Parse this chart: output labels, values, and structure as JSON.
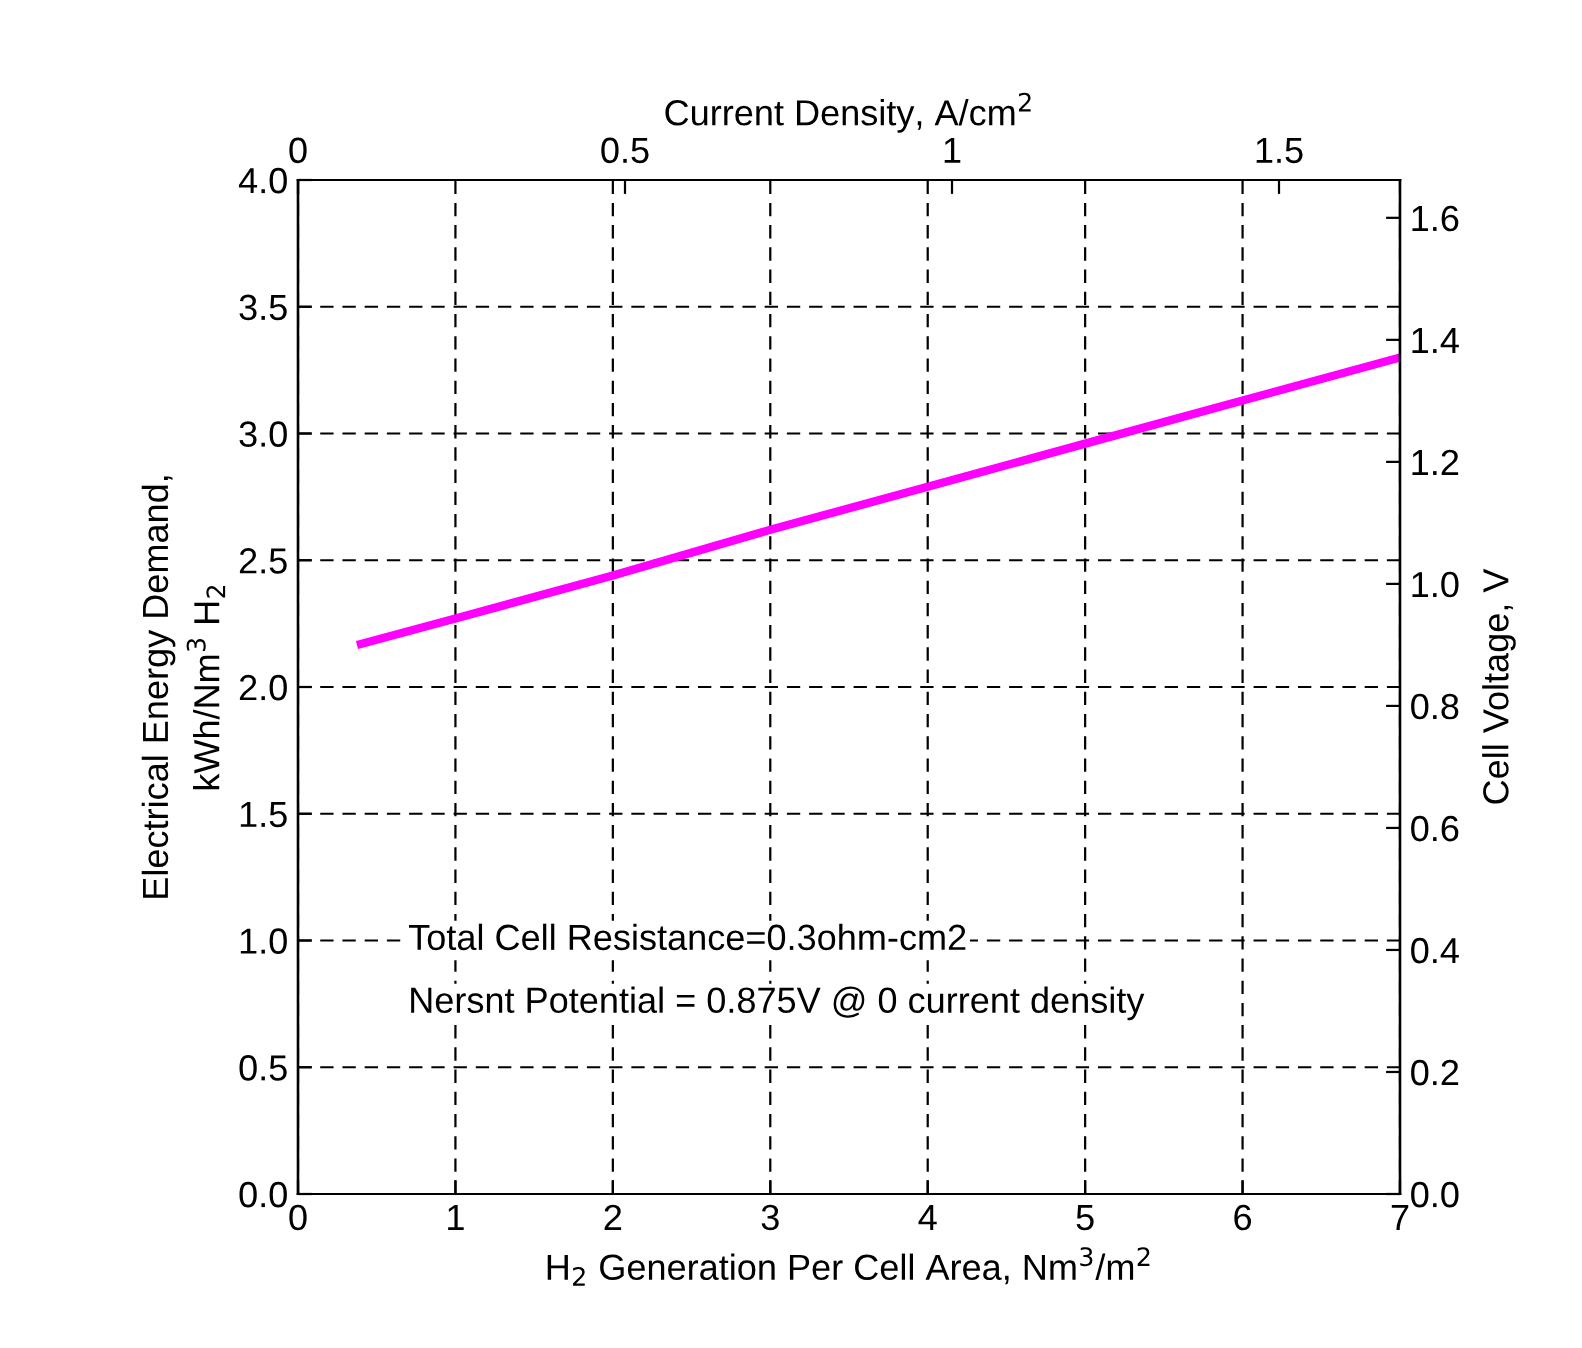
{
  "chart_data": {
    "type": "line",
    "x": [
      0.4,
      1,
      2,
      3,
      4,
      5,
      6,
      7
    ],
    "series": [
      {
        "color": "#ff00ff",
        "values": [
          2.17,
          2.27,
          2.44,
          2.62,
          2.79,
          2.96,
          3.13,
          3.3
        ]
      }
    ],
    "xlim": [
      0,
      7
    ],
    "xticks": [
      0,
      1,
      2,
      3,
      4,
      5,
      6,
      7
    ],
    "ylim": [
      0,
      4
    ],
    "yticks": [
      {
        "value": 0,
        "label": "0.0"
      },
      {
        "value": 0.5,
        "label": "0.5"
      },
      {
        "value": 1,
        "label": "1.0"
      },
      {
        "value": 1.5,
        "label": "1.5"
      },
      {
        "value": 2,
        "label": "2.0"
      },
      {
        "value": 2.5,
        "label": "2.5"
      },
      {
        "value": 3,
        "label": "3.0"
      },
      {
        "value": 3.5,
        "label": "3.5"
      },
      {
        "value": 4,
        "label": "4.0"
      }
    ],
    "y2lim": [
      0,
      1.662
    ],
    "y2ticks": [
      {
        "value": 0,
        "label": "0.0"
      },
      {
        "value": 0.2,
        "label": "0.2"
      },
      {
        "value": 0.4,
        "label": "0.4"
      },
      {
        "value": 0.6,
        "label": "0.6"
      },
      {
        "value": 0.8,
        "label": "0.8"
      },
      {
        "value": 1,
        "label": "1.0"
      },
      {
        "value": 1.2,
        "label": "1.2"
      },
      {
        "value": 1.4,
        "label": "1.4"
      },
      {
        "value": 1.6,
        "label": "1.6"
      }
    ],
    "x2lim": [
      0,
      1.685
    ],
    "x2ticks": [
      0,
      0.5,
      1,
      1.5
    ],
    "xlabel": "H$_{2}$ Generation Per Cell Area, Nm$^{3}$/m$^{2}$",
    "ylabel": "Electrical Energy Demand,\nkWh/Nm$^{3}$ H$_{2}$",
    "y2label": "Cell Voltage, V",
    "x2label": "Current Density, A/cm$^{2}$",
    "annotations": [
      "Total Cell Resistance=0.3ohm-cm2",
      "Nersnt Potential = 0.875V @ 0 current density"
    ],
    "grid": true,
    "marker": "none",
    "line_style": "solid",
    "legend": false
  }
}
